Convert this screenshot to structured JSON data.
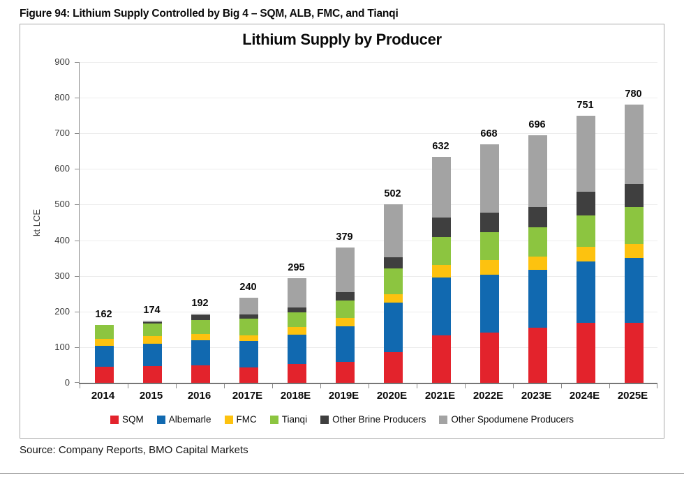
{
  "figure": {
    "caption": "Figure 94: Lithium Supply Controlled by Big 4 – SQM, ALB, FMC, and Tianqi",
    "source": "Source: Company Reports, BMO Capital Markets"
  },
  "chart_data": {
    "type": "bar",
    "stacked": true,
    "title": "Lithium Supply by Producer",
    "xlabel": "",
    "ylabel": "kt LCE",
    "ylim": [
      0,
      900
    ],
    "ytick_step": 100,
    "grid": true,
    "legend_position": "bottom",
    "categories": [
      "2014",
      "2015",
      "2016",
      "2017E",
      "2018E",
      "2019E",
      "2020E",
      "2021E",
      "2022E",
      "2023E",
      "2024E",
      "2025E"
    ],
    "totals": [
      162,
      174,
      192,
      240,
      295,
      379,
      502,
      632,
      668,
      696,
      751,
      780
    ],
    "series": [
      {
        "name": "SQM",
        "color": "#e3232c",
        "values": [
          45,
          47,
          48,
          44,
          52,
          59,
          87,
          133,
          141,
          155,
          169,
          169
        ]
      },
      {
        "name": "Albemarle",
        "color": "#1169b0",
        "values": [
          58,
          62,
          70,
          75,
          83,
          100,
          138,
          162,
          163,
          162,
          173,
          181
        ]
      },
      {
        "name": "FMC",
        "color": "#fdc20f",
        "values": [
          20,
          22,
          18,
          15,
          22,
          23,
          24,
          35,
          41,
          38,
          41,
          39
        ]
      },
      {
        "name": "Tianqi",
        "color": "#8cc540",
        "values": [
          39,
          36,
          40,
          47,
          42,
          49,
          73,
          78,
          78,
          82,
          89,
          103
        ]
      },
      {
        "name": "Other Brine Producers",
        "color": "#3f3f3f",
        "values": [
          0,
          3,
          13,
          12,
          14,
          23,
          32,
          54,
          54,
          57,
          66,
          64
        ]
      },
      {
        "name": "Other Spodumene Producers",
        "color": "#a3a3a3",
        "values": [
          0,
          4,
          3,
          47,
          82,
          125,
          148,
          170,
          191,
          202,
          213,
          224
        ]
      }
    ]
  }
}
